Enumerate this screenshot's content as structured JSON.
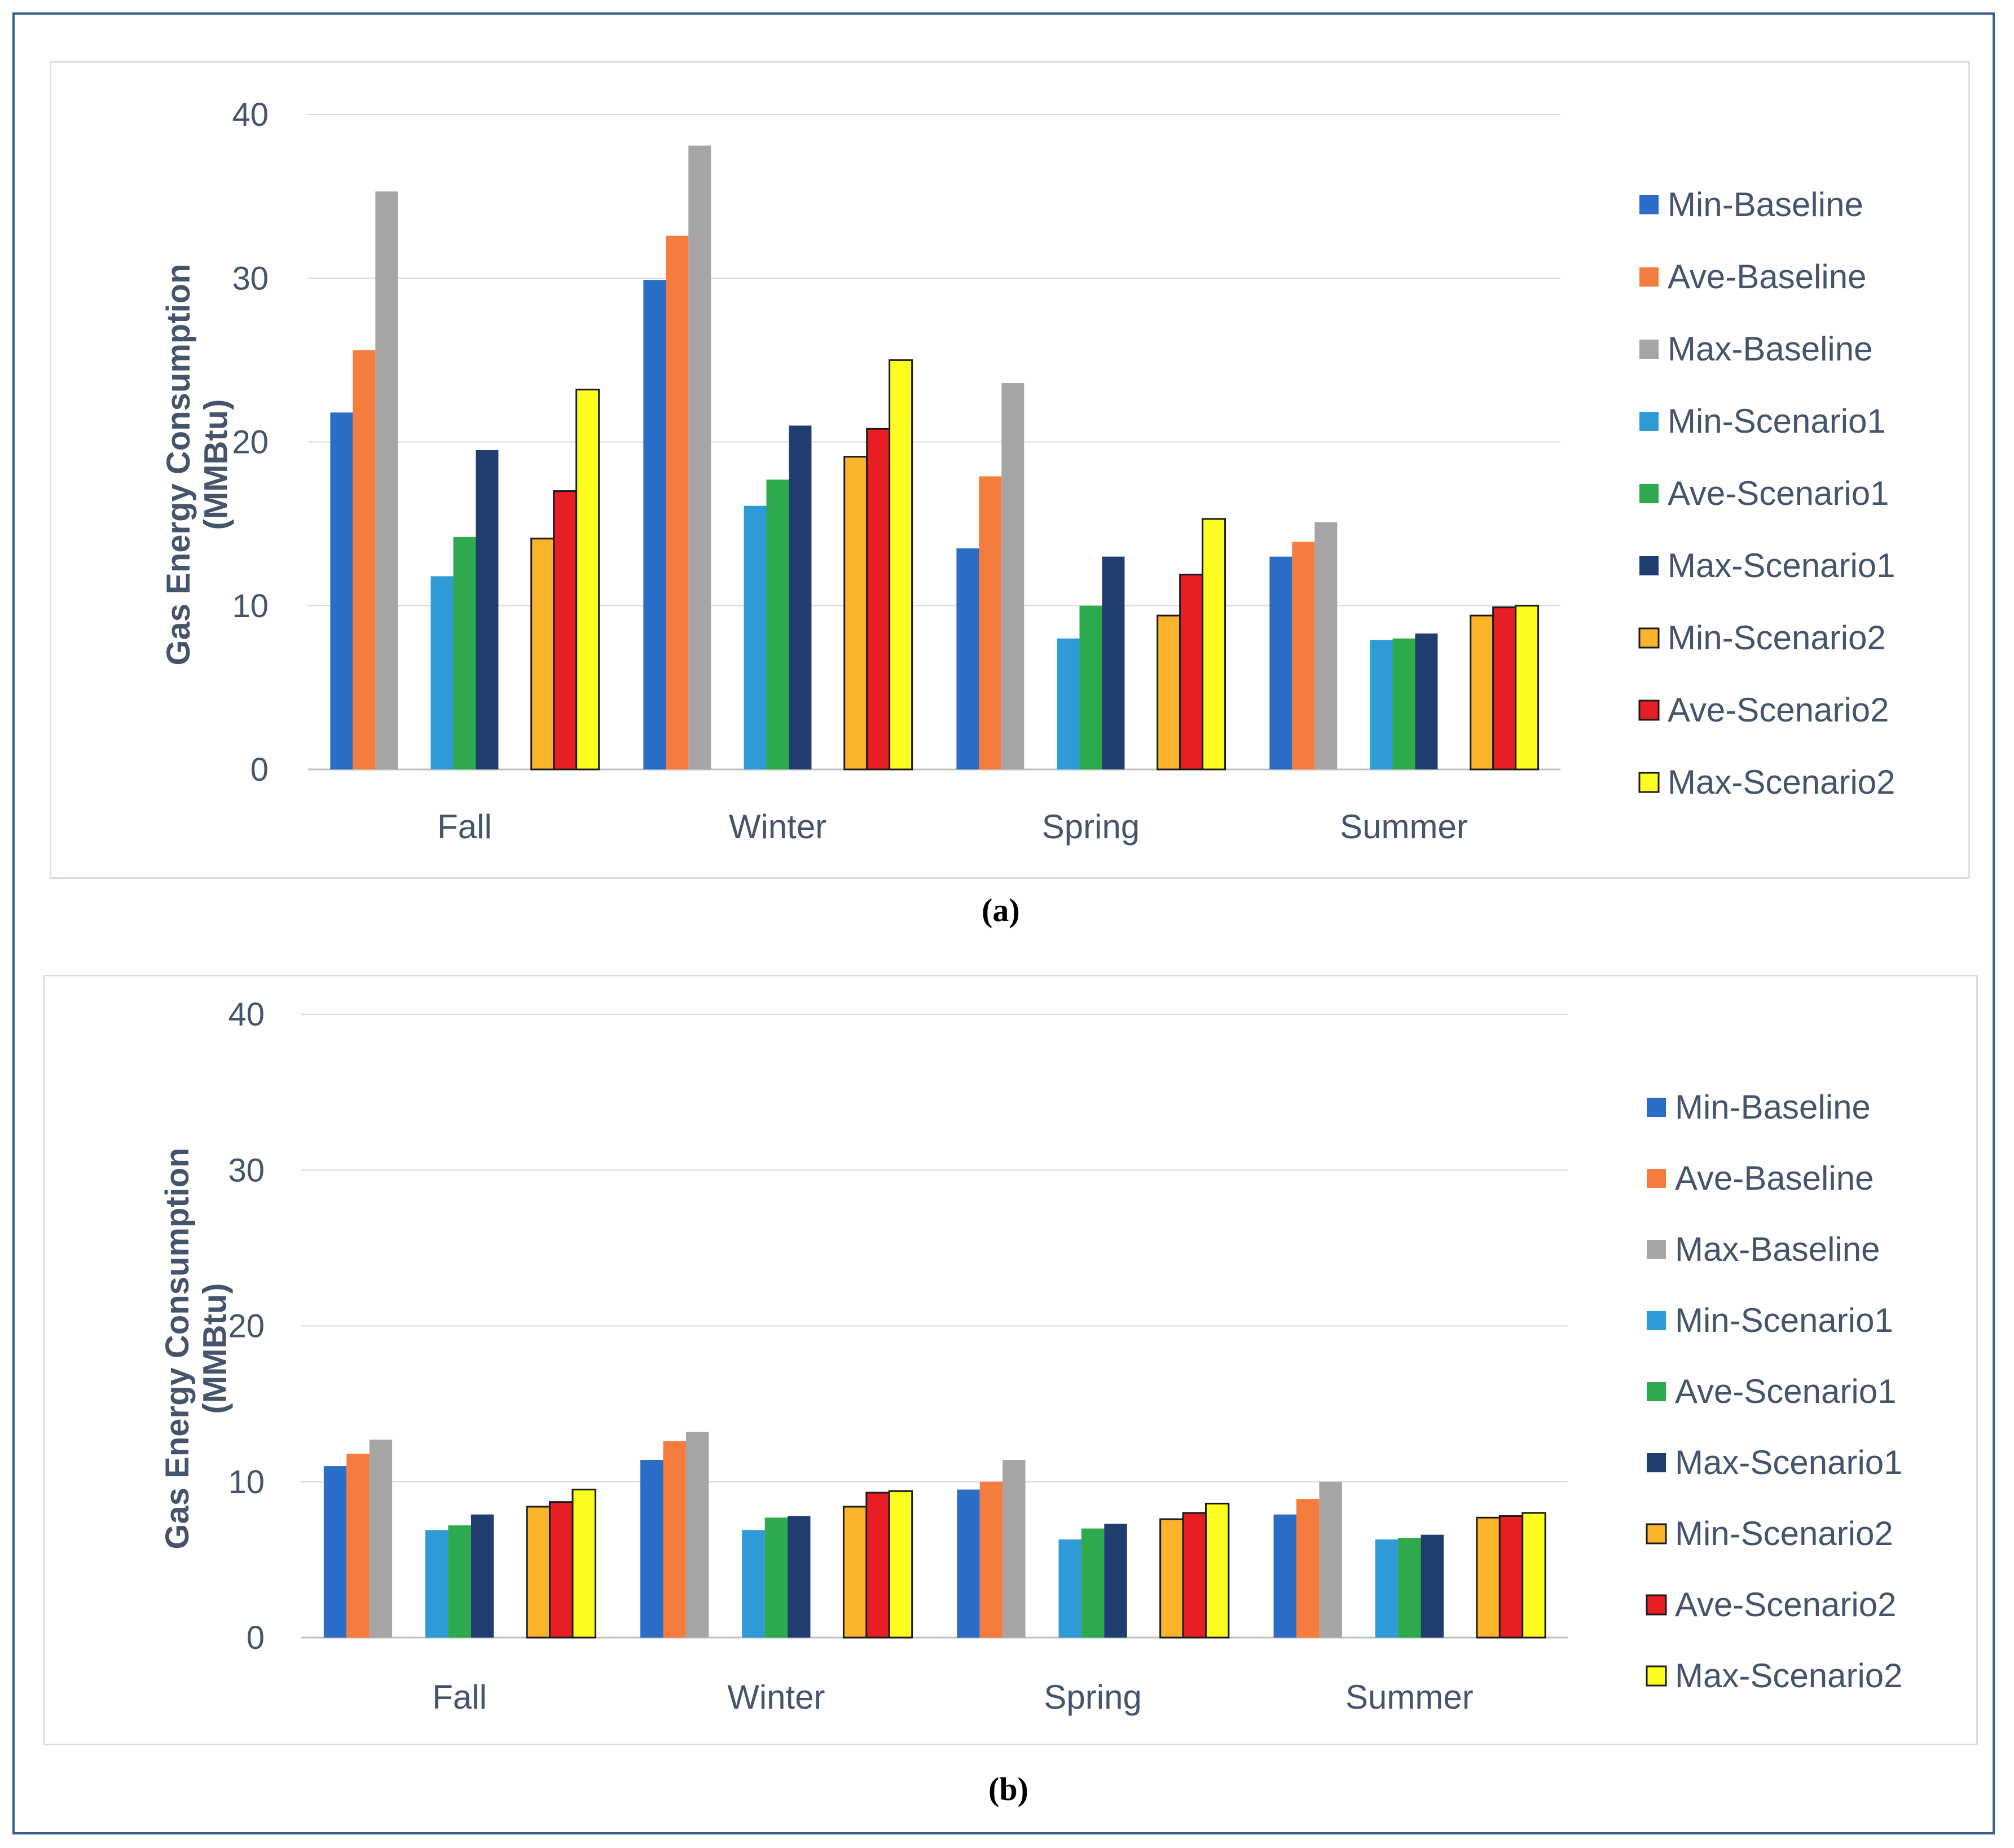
{
  "colors": {
    "Min-Baseline": "#2a6cc6",
    "Ave-Baseline": "#f47c3c",
    "Max-Baseline": "#a5a5a5",
    "Min-Scenario1": "#2e9ad6",
    "Ave-Scenario1": "#2eaa4e",
    "Max-Scenario1": "#1f3d6e",
    "Min-Scenario2": "#f9b42b",
    "Ave-Scenario2": "#e81e25",
    "Max-Scenario2": "#fdfd1f",
    "axis_text": "#44546a",
    "grid": "#d9d9d9"
  },
  "chart_data": [
    {
      "type": "bar",
      "caption": "(a)",
      "ylabel": "Gas Energy Consumption (MMBtu)",
      "xlabel": "",
      "ylim": [
        0,
        40
      ],
      "yticks": [
        0,
        10,
        20,
        30,
        40
      ],
      "grid": true,
      "legend": "right",
      "categories": [
        "Fall",
        "Winter",
        "Spring",
        "Summer"
      ],
      "series": [
        {
          "name": "Min-Baseline",
          "values": [
            21.8,
            29.9,
            13.5,
            13.0
          ]
        },
        {
          "name": "Ave-Baseline",
          "values": [
            25.6,
            32.6,
            17.9,
            13.9
          ]
        },
        {
          "name": "Max-Baseline",
          "values": [
            35.3,
            38.1,
            23.6,
            15.1
          ]
        },
        {
          "name": "Min-Scenario1",
          "values": [
            11.8,
            16.1,
            8.0,
            7.9
          ]
        },
        {
          "name": "Ave-Scenario1",
          "values": [
            14.2,
            17.7,
            10.0,
            8.0
          ]
        },
        {
          "name": "Max-Scenario1",
          "values": [
            19.5,
            21.0,
            13.0,
            8.3
          ]
        },
        {
          "name": "Min-Scenario2",
          "values": [
            14.1,
            19.1,
            9.4,
            9.4
          ]
        },
        {
          "name": "Ave-Scenario2",
          "values": [
            17.0,
            20.8,
            11.9,
            9.9
          ]
        },
        {
          "name": "Max-Scenario2",
          "values": [
            23.2,
            25.0,
            15.3,
            10.0
          ]
        }
      ]
    },
    {
      "type": "bar",
      "caption": "(b)",
      "ylabel": "Gas Energy Consumption (MMBtu)",
      "xlabel": "",
      "ylim": [
        0,
        40
      ],
      "yticks": [
        0,
        10,
        20,
        30,
        40
      ],
      "grid": true,
      "legend": "right",
      "categories": [
        "Fall",
        "Winter",
        "Spring",
        "Summer"
      ],
      "series": [
        {
          "name": "Min-Baseline",
          "values": [
            11.0,
            11.4,
            9.5,
            7.9
          ]
        },
        {
          "name": "Ave-Baseline",
          "values": [
            11.8,
            12.6,
            10.0,
            8.9
          ]
        },
        {
          "name": "Max-Baseline",
          "values": [
            12.7,
            13.2,
            11.4,
            10.0
          ]
        },
        {
          "name": "Min-Scenario1",
          "values": [
            6.9,
            6.9,
            6.3,
            6.3
          ]
        },
        {
          "name": "Ave-Scenario1",
          "values": [
            7.2,
            7.7,
            7.0,
            6.4
          ]
        },
        {
          "name": "Max-Scenario1",
          "values": [
            7.9,
            7.8,
            7.3,
            6.6
          ]
        },
        {
          "name": "Min-Scenario2",
          "values": [
            8.4,
            8.4,
            7.6,
            7.7
          ]
        },
        {
          "name": "Ave-Scenario2",
          "values": [
            8.7,
            9.3,
            8.0,
            7.8
          ]
        },
        {
          "name": "Max-Scenario2",
          "values": [
            9.5,
            9.4,
            8.6,
            8.0
          ]
        }
      ]
    }
  ]
}
